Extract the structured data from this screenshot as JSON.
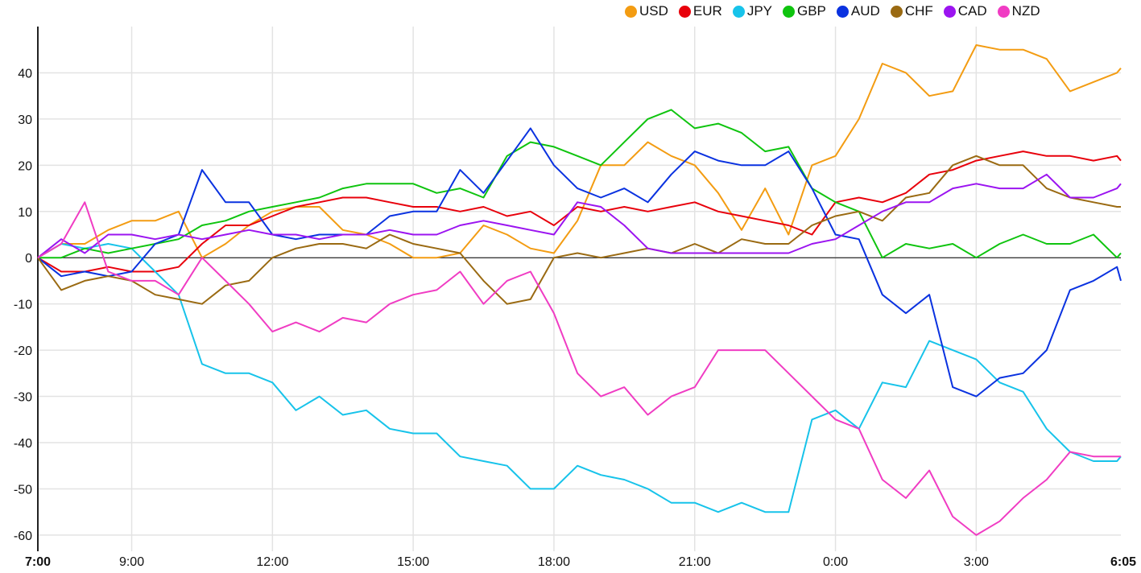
{
  "chart_data": {
    "type": "line",
    "title": "",
    "xlabel": "",
    "ylabel": "",
    "ylim": [
      -63.5,
      50
    ],
    "grid": true,
    "legend_position": "top-right",
    "y_ticks": [
      40,
      30,
      20,
      10,
      0,
      -10,
      -20,
      -30,
      -40,
      -50,
      -60
    ],
    "x_ticks": [
      {
        "label": "7:00",
        "hour": 0,
        "bold": true
      },
      {
        "label": "9:00",
        "hour": 2
      },
      {
        "label": "12:00",
        "hour": 5
      },
      {
        "label": "15:00",
        "hour": 8
      },
      {
        "label": "18:00",
        "hour": 11
      },
      {
        "label": "21:00",
        "hour": 14
      },
      {
        "label": "0:00",
        "hour": 17
      },
      {
        "label": "3:00",
        "hour": 20
      },
      {
        "label": "6:05",
        "hour": 23.083,
        "bold": true
      }
    ],
    "x_hours": [
      0,
      0.5,
      1,
      1.5,
      2,
      2.5,
      3,
      3.5,
      4,
      4.5,
      5,
      5.5,
      6,
      6.5,
      7,
      7.5,
      8,
      8.5,
      9,
      9.5,
      10,
      10.5,
      11,
      11.5,
      12,
      12.5,
      13,
      13.5,
      14,
      14.5,
      15,
      15.5,
      16,
      16.5,
      17,
      17.5,
      18,
      18.5,
      19,
      19.5,
      20,
      20.5,
      21,
      21.5,
      22,
      22.5,
      23,
      23.083
    ],
    "series": [
      {
        "name": "USD",
        "color": "#f39c12",
        "values": [
          0,
          3,
          3,
          6,
          8,
          8,
          10,
          0,
          3,
          7,
          10,
          11,
          11,
          6,
          5,
          3,
          0,
          0,
          1,
          7,
          5,
          2,
          1,
          8,
          20,
          20,
          25,
          22,
          20,
          14,
          6,
          15,
          5,
          20,
          22,
          30,
          42,
          40,
          35,
          36,
          46,
          45,
          45,
          43,
          36,
          38,
          40,
          41
        ]
      },
      {
        "name": "EUR",
        "color": "#e8000b",
        "values": [
          0,
          -3,
          -3,
          -2,
          -3,
          -3,
          -2,
          3,
          7,
          7,
          9,
          11,
          12,
          13,
          13,
          12,
          11,
          11,
          10,
          11,
          9,
          10,
          7,
          11,
          10,
          11,
          10,
          11,
          12,
          10,
          9,
          8,
          7,
          5,
          12,
          13,
          12,
          14,
          18,
          19,
          21,
          22,
          23,
          22,
          22,
          21,
          22,
          21
        ]
      },
      {
        "name": "JPY",
        "color": "#17c3ea",
        "values": [
          0,
          3,
          2,
          3,
          2,
          -3,
          -8,
          -23,
          -25,
          -25,
          -27,
          -33,
          -30,
          -34,
          -33,
          -37,
          -38,
          -38,
          -43,
          -44,
          -45,
          -50,
          -50,
          -45,
          -47,
          -48,
          -50,
          -53,
          -53,
          -55,
          -53,
          -55,
          -55,
          -35,
          -33,
          -37,
          -27,
          -28,
          -18,
          -20,
          -22,
          -27,
          -29,
          -37,
          -42,
          -44,
          -44,
          -43
        ]
      },
      {
        "name": "GBP",
        "color": "#0fc40f",
        "values": [
          0,
          0,
          2,
          1,
          2,
          3,
          4,
          7,
          8,
          10,
          11,
          12,
          13,
          15,
          16,
          16,
          16,
          14,
          15,
          13,
          22,
          25,
          24,
          22,
          20,
          25,
          30,
          32,
          28,
          29,
          27,
          23,
          24,
          15,
          12,
          10,
          0,
          3,
          2,
          3,
          0,
          3,
          5,
          3,
          3,
          5,
          0,
          1
        ]
      },
      {
        "name": "AUD",
        "color": "#0a32e0",
        "values": [
          0,
          -4,
          -3,
          -4,
          -3,
          3,
          5,
          19,
          12,
          12,
          5,
          4,
          5,
          5,
          5,
          9,
          10,
          10,
          19,
          14,
          21,
          28,
          20,
          15,
          13,
          15,
          12,
          18,
          23,
          21,
          20,
          20,
          23,
          15,
          5,
          4,
          -8,
          -12,
          -8,
          -28,
          -30,
          -26,
          -25,
          -20,
          -7,
          -5,
          -2,
          -5
        ]
      },
      {
        "name": "CHF",
        "color": "#9a6a12",
        "values": [
          0,
          -7,
          -5,
          -4,
          -5,
          -8,
          -9,
          -10,
          -6,
          -5,
          0,
          2,
          3,
          3,
          2,
          5,
          3,
          2,
          1,
          -5,
          -10,
          -9,
          0,
          1,
          0,
          1,
          2,
          1,
          3,
          1,
          4,
          3,
          3,
          7,
          9,
          10,
          8,
          13,
          14,
          20,
          22,
          20,
          20,
          15,
          13,
          12,
          11,
          11
        ]
      },
      {
        "name": "CAD",
        "color": "#9b14f0",
        "values": [
          0,
          4,
          1,
          5,
          5,
          4,
          5,
          4,
          5,
          6,
          5,
          5,
          4,
          5,
          5,
          6,
          5,
          5,
          7,
          8,
          7,
          6,
          5,
          12,
          11,
          7,
          2,
          1,
          1,
          1,
          1,
          1,
          1,
          3,
          4,
          7,
          10,
          12,
          12,
          15,
          16,
          15,
          15,
          18,
          13,
          13,
          15,
          16
        ]
      },
      {
        "name": "NZD",
        "color": "#f03cc3",
        "values": [
          0,
          3,
          12,
          -3,
          -5,
          -5,
          -8,
          0,
          -5,
          -10,
          -16,
          -14,
          -16,
          -13,
          -14,
          -10,
          -8,
          -7,
          -3,
          -10,
          -5,
          -3,
          -12,
          -25,
          -30,
          -28,
          -34,
          -30,
          -28,
          -20,
          -20,
          -20,
          -25,
          -30,
          -35,
          -37,
          -48,
          -52,
          -46,
          -56,
          -60,
          -57,
          -52,
          -48,
          -42,
          -43,
          -43,
          -43
        ]
      }
    ]
  }
}
